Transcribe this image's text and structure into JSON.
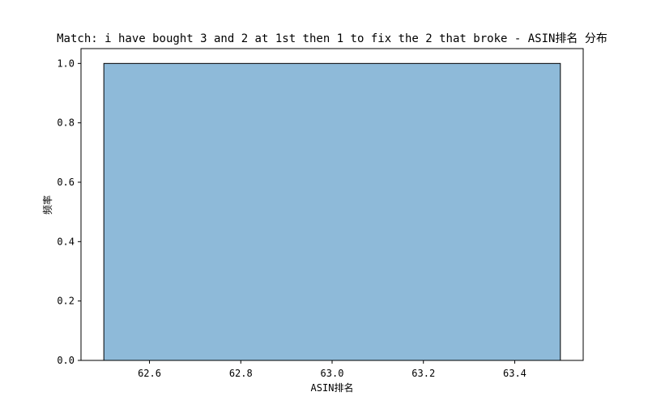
{
  "chart_data": {
    "type": "bar",
    "title": "Match: i have bought 3 and 2 at 1st then 1 to fix the 2 that broke - ASIN排名 分布",
    "xlabel": "ASIN排名",
    "ylabel": "频率",
    "xlim": [
      62.45,
      63.55
    ],
    "ylim": [
      0,
      1.05
    ],
    "x_ticks": [
      62.6,
      62.8,
      63.0,
      63.2,
      63.4
    ],
    "x_tick_labels": [
      "62.6",
      "62.8",
      "63.0",
      "63.2",
      "63.4"
    ],
    "y_ticks": [
      0,
      0.2,
      0.4,
      0.6,
      0.8,
      1.0
    ],
    "y_tick_labels": [
      "0.0",
      "0.2",
      "0.4",
      "0.6",
      "0.8",
      "1.0"
    ],
    "bins": [
      {
        "x_start": 62.5,
        "x_end": 63.5,
        "value": 1.0
      }
    ],
    "bar_color": "#8ebad9",
    "bar_edge_color": "#000000",
    "grid": false
  }
}
